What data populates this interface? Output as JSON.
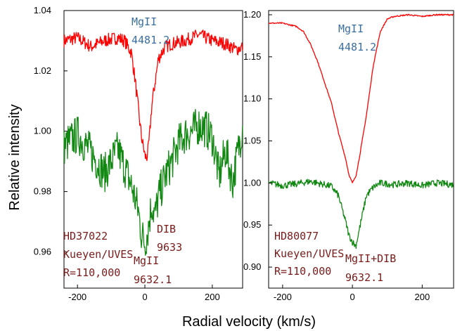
{
  "xlabel": "Radial velocity (km/s)",
  "ylabel": "Relative intensity",
  "colors": {
    "mg4481": "#ff0000",
    "mg9632": "#118811",
    "label_blue": "#3a6e9f",
    "label_red": "#7a1a1a"
  },
  "chart_data": [
    {
      "type": "line",
      "xlim": [
        -240,
        290
      ],
      "ylim": [
        0.948,
        1.04
      ],
      "x_ticks": [
        -200,
        0,
        200
      ],
      "y_ticks": [
        0.96,
        0.98,
        1.0,
        1.02,
        1.04
      ],
      "y_tick_labels": [
        "0.96",
        "0.98",
        "1.00",
        "1.02",
        "1.04"
      ],
      "series": [
        {
          "label_line1": "MgII",
          "label_line2": "4481.2",
          "x": [
            -240,
            -200,
            -160,
            -120,
            -80,
            -60,
            -40,
            -30,
            -20,
            -10,
            0,
            5,
            10,
            15,
            20,
            30,
            40,
            60,
            80,
            120,
            160,
            200,
            240,
            270,
            290
          ],
          "y": [
            1.03,
            1.031,
            1.028,
            1.03,
            1.031,
            1.03,
            1.026,
            1.018,
            1.008,
            0.998,
            0.992,
            0.991,
            0.994,
            1.0,
            1.008,
            1.016,
            1.024,
            1.028,
            1.029,
            1.03,
            1.032,
            1.03,
            1.029,
            1.027,
            1.028
          ]
        },
        {
          "label_line1": "MgII",
          "label_line2": "9632.1",
          "x": [
            -240,
            -200,
            -160,
            -120,
            -80,
            -60,
            -40,
            -20,
            -10,
            0,
            10,
            20,
            30,
            40,
            60,
            80,
            100,
            120,
            140,
            160,
            180,
            200,
            220,
            240,
            260,
            290
          ],
          "y": [
            0.995,
            0.999,
            0.993,
            0.986,
            0.994,
            0.988,
            0.982,
            0.974,
            0.966,
            0.963,
            0.968,
            0.976,
            0.972,
            0.978,
            0.985,
            0.99,
            0.996,
            0.999,
            1.0,
            1.002,
            1.001,
            0.998,
            0.985,
            0.994,
            0.983,
            1.002
          ]
        }
      ],
      "annotations": {
        "dib_line1": "DIB",
        "dib_line2": "9633",
        "star": "HD37022",
        "instrument": "Kueyen/UVES",
        "resolution": "R=110,000"
      }
    },
    {
      "type": "line",
      "xlim": [
        -240,
        290
      ],
      "ylim": [
        0.875,
        1.205
      ],
      "x_ticks": [
        -200,
        0,
        200
      ],
      "y_ticks": [
        0.9,
        0.95,
        1.0,
        1.05,
        1.1,
        1.15,
        1.2
      ],
      "y_tick_labels": [
        "0.90",
        "0.95",
        "1.00",
        "1.05",
        "1.10",
        "1.15",
        "1.20"
      ],
      "series": [
        {
          "label_line1": "MgII",
          "label_line2": "4481.2",
          "x": [
            -240,
            -200,
            -160,
            -140,
            -120,
            -100,
            -80,
            -60,
            -40,
            -20,
            -10,
            0,
            10,
            20,
            40,
            60,
            80,
            100,
            120,
            160,
            200,
            240,
            290
          ],
          "y": [
            1.19,
            1.19,
            1.186,
            1.18,
            1.165,
            1.145,
            1.12,
            1.095,
            1.06,
            1.03,
            1.01,
            1.0,
            1.008,
            1.03,
            1.08,
            1.14,
            1.18,
            1.195,
            1.198,
            1.2,
            1.198,
            1.2,
            1.2
          ]
        },
        {
          "label_line1": "MgII+DIB",
          "label_line2": "9632.1",
          "x": [
            -240,
            -200,
            -160,
            -120,
            -80,
            -60,
            -40,
            -20,
            -10,
            0,
            10,
            20,
            40,
            60,
            80,
            120,
            160,
            200,
            240,
            290
          ],
          "y": [
            1.0,
            0.997,
            0.999,
            1.002,
            0.998,
            0.996,
            0.985,
            0.955,
            0.938,
            0.93,
            0.925,
            0.945,
            0.985,
            0.995,
            1.0,
            0.998,
            1.0,
            0.997,
            1.0,
            0.998
          ]
        }
      ],
      "annotations": {
        "star": "HD80077",
        "instrument": "Kueyen/UVES",
        "resolution": "R=110,000"
      }
    }
  ]
}
